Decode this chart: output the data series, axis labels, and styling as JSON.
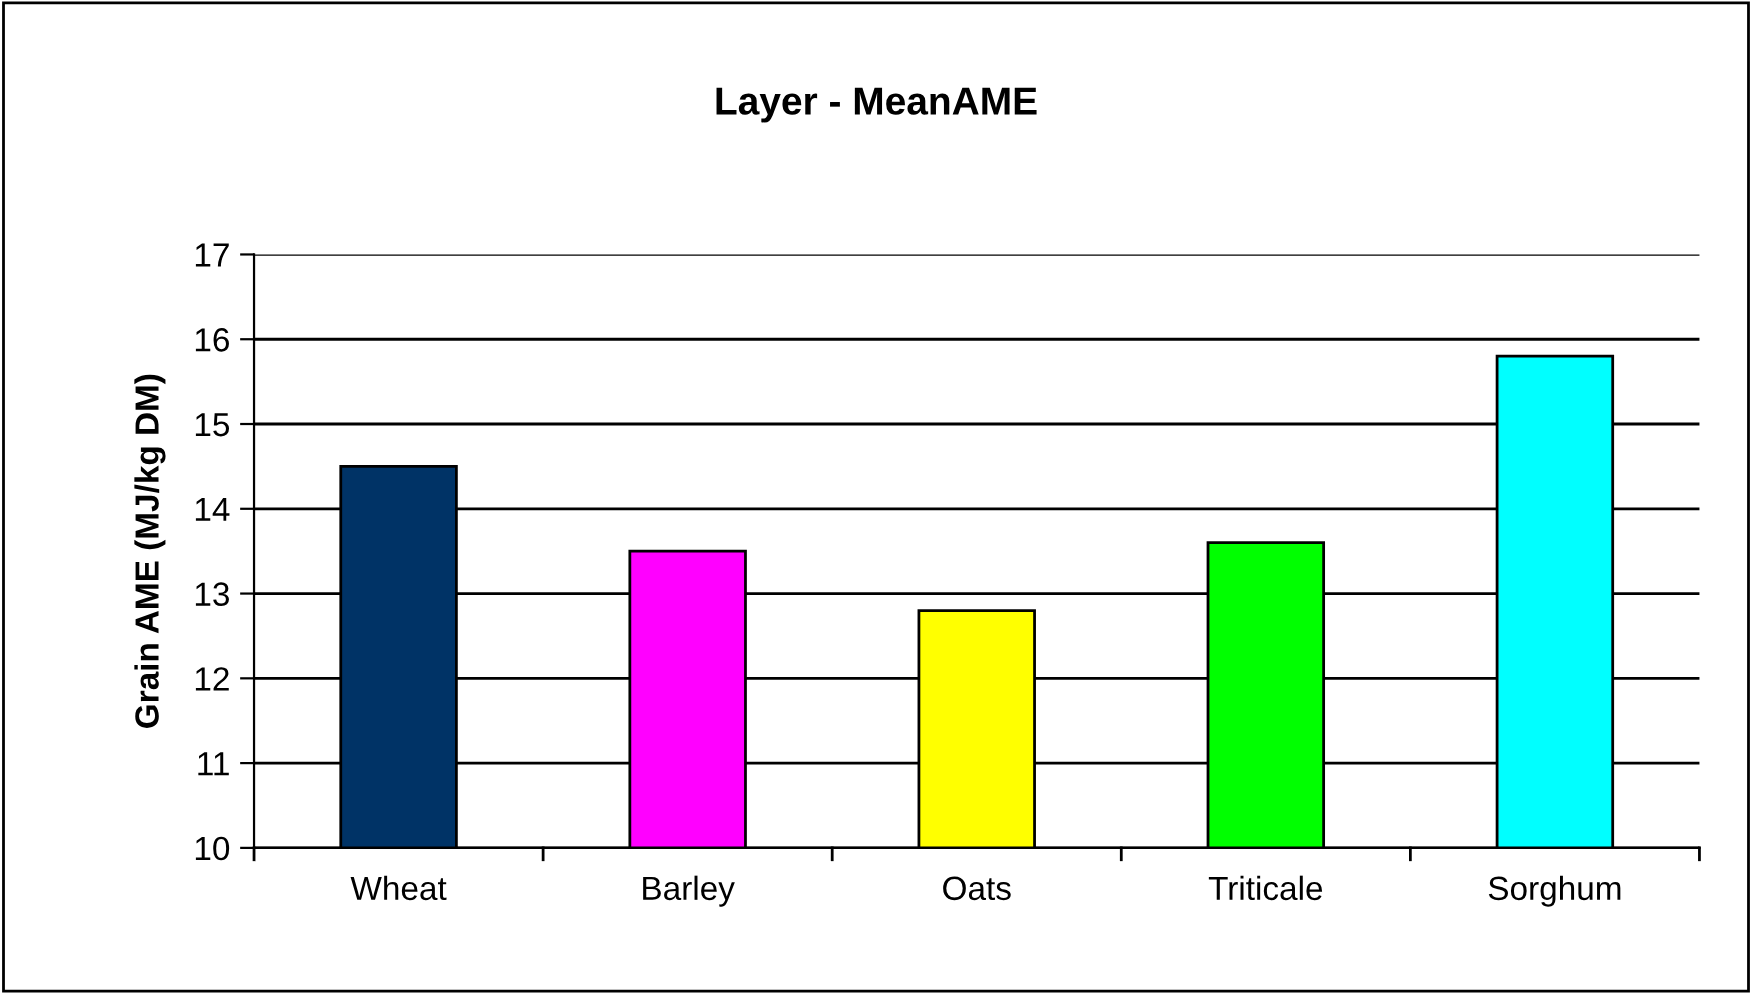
{
  "chart_data": {
    "type": "bar",
    "title": "Layer - MeanAME",
    "ylabel": "Grain AME (MJ/kg DM)",
    "categories": [
      "Wheat",
      "Barley",
      "Oats",
      "Triticale",
      "Sorghum"
    ],
    "values": [
      14.5,
      13.5,
      12.8,
      13.6,
      15.8
    ],
    "colors": [
      "#003366",
      "#ff00ff",
      "#ffff00",
      "#00ff00",
      "#00ffff"
    ],
    "ylim": [
      10,
      17
    ],
    "yticks": [
      10,
      11,
      12,
      13,
      14,
      15,
      16,
      17
    ],
    "grid": "y"
  }
}
